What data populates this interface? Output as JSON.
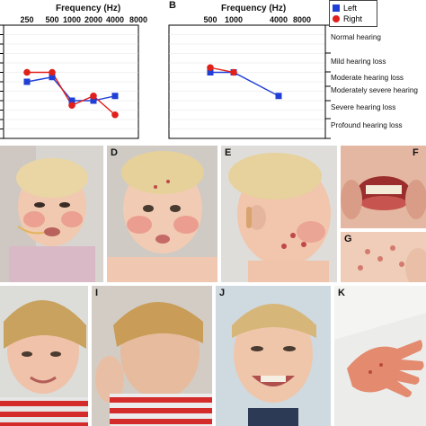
{
  "panel_a": {
    "axis_title": "Frequency (Hz)",
    "freq_ticks_top": [
      "250",
      "500",
      "1000",
      "2000",
      "4000",
      "8000"
    ]
  },
  "panel_b": {
    "letter": "B",
    "axis_title": "Frequency (Hz)",
    "freq_ticks_top": [
      "500",
      "1000",
      "4000",
      "8000"
    ],
    "legend": [
      {
        "label": "Left",
        "color": "#1f3fd6",
        "marker": "square"
      },
      {
        "label": "Right",
        "color": "#e0201b",
        "marker": "circle"
      }
    ],
    "severity_labels": [
      "Normal hearing",
      "Mild hearing loss",
      "Moderate hearing loss",
      "Moderately severe hearing",
      "Severe hearing loss",
      "Profound hearing loss"
    ]
  },
  "photo_panels": {
    "D": "D",
    "E": "E",
    "F": "F",
    "G": "G",
    "I": "I",
    "J": "J",
    "K": "K"
  },
  "chart_data": [
    {
      "type": "line",
      "panel": "A",
      "xlabel": "Frequency (Hz)",
      "x": [
        250,
        500,
        1000,
        2000,
        4000
      ],
      "series": [
        {
          "name": "Left",
          "color": "#1f3fd6",
          "values": [
            60,
            55,
            80,
            80,
            75
          ]
        },
        {
          "name": "Right",
          "color": "#e0201b",
          "values": [
            50,
            50,
            85,
            75,
            95
          ]
        }
      ]
    },
    {
      "type": "line",
      "panel": "B",
      "xlabel": "Frequency (Hz)",
      "x": [
        500,
        1000,
        4000
      ],
      "series": [
        {
          "name": "Left",
          "color": "#1f3fd6",
          "values": [
            50,
            50,
            75
          ]
        },
        {
          "name": "Right",
          "color": "#e0201b",
          "values": [
            45,
            50,
            null
          ]
        }
      ]
    }
  ]
}
